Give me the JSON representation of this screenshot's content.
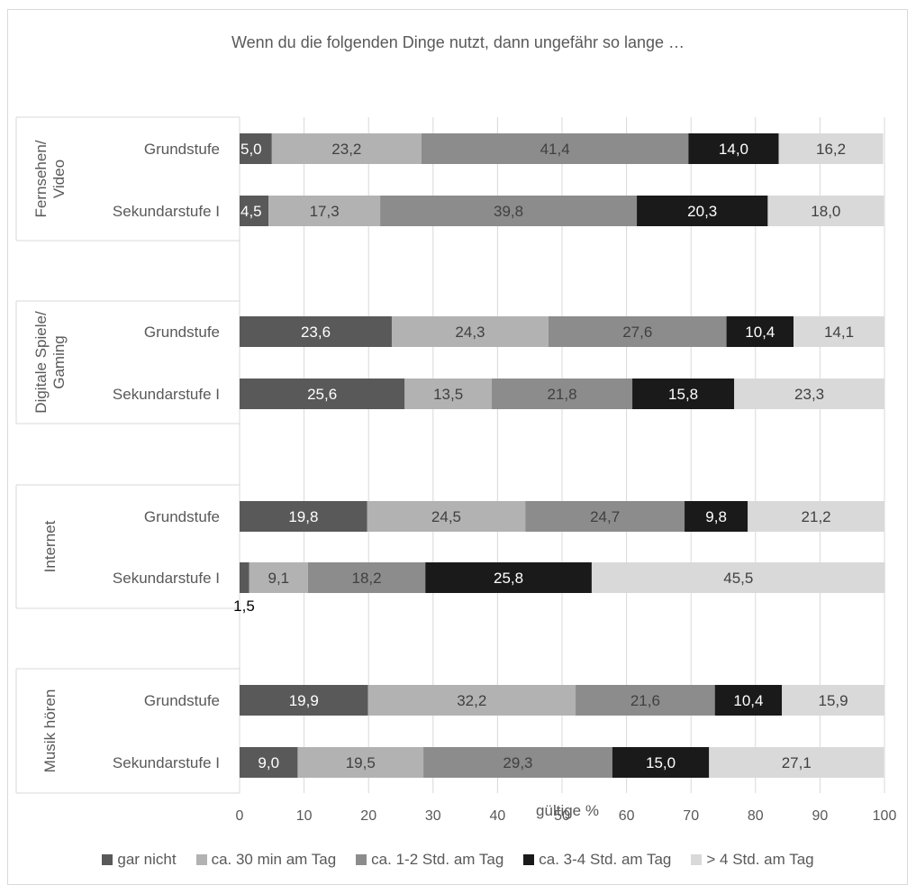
{
  "chart_data": {
    "type": "bar",
    "orientation": "horizontal",
    "stacked": true,
    "title": "Wenn du die folgenden Dinge nutzt, dann ungefähr so lange …",
    "xlabel": "gültige %",
    "xlim": [
      0,
      100
    ],
    "xticks": [
      "0",
      "10",
      "20",
      "30",
      "40",
      "50",
      "60",
      "70",
      "80",
      "90",
      "100"
    ],
    "grid": true,
    "legend_position": "bottom",
    "groups": [
      {
        "name": "Fernsehen/ Video",
        "categories": [
          "Grundstufe",
          "Sekundarstufe I"
        ]
      },
      {
        "name": "Digitale Spiele/ Gaming",
        "categories": [
          "Grundstufe",
          "Sekundarstufe I"
        ]
      },
      {
        "name": "Internet",
        "categories": [
          "Grundstufe",
          "Sekundarstufe I"
        ]
      },
      {
        "name": "Musik hören",
        "categories": [
          "Grundstufe",
          "Sekundarstufe I"
        ]
      }
    ],
    "series": [
      {
        "name": "gar nicht",
        "color": "#595959",
        "label_color": "#ffffff",
        "values": [
          5.0,
          4.5,
          23.6,
          25.6,
          19.8,
          1.5,
          19.9,
          9.0
        ],
        "labels": [
          "5,0",
          "4,5",
          "23,6",
          "25,6",
          "19,8",
          "1,5",
          "19,9",
          "9,0"
        ]
      },
      {
        "name": "ca. 30 min am Tag",
        "color": "#b2b2b2",
        "label_color": "#404040",
        "values": [
          23.2,
          17.3,
          24.3,
          13.5,
          24.5,
          9.1,
          32.2,
          19.5
        ],
        "labels": [
          "23,2",
          "17,3",
          "24,3",
          "13,5",
          "24,5",
          "9,1",
          "32,2",
          "19,5"
        ]
      },
      {
        "name": "ca. 1-2 Std. am Tag",
        "color": "#8c8c8c",
        "label_color": "#404040",
        "values": [
          41.4,
          39.8,
          27.6,
          21.8,
          24.7,
          18.2,
          21.6,
          29.3
        ],
        "labels": [
          "41,4",
          "39,8",
          "27,6",
          "21,8",
          "24,7",
          "18,2",
          "21,6",
          "29,3"
        ]
      },
      {
        "name": "ca. 3-4 Std. am Tag",
        "color": "#1a1a1a",
        "label_color": "#ffffff",
        "values": [
          14.0,
          20.3,
          10.4,
          15.8,
          9.8,
          25.8,
          10.4,
          15.0
        ],
        "labels": [
          "14,0",
          "20,3",
          "10,4",
          "15,8",
          "9,8",
          "25,8",
          "10,4",
          "15,0"
        ]
      },
      {
        "name": "> 4 Std. am Tag",
        "color": "#d9d9d9",
        "label_color": "#404040",
        "values": [
          16.2,
          18.0,
          14.1,
          23.3,
          21.2,
          45.5,
          15.9,
          27.1
        ],
        "labels": [
          "16,2",
          "18,0",
          "14,1",
          "23,3",
          "21,2",
          "45,5",
          "15,9",
          "27,1"
        ]
      }
    ]
  }
}
